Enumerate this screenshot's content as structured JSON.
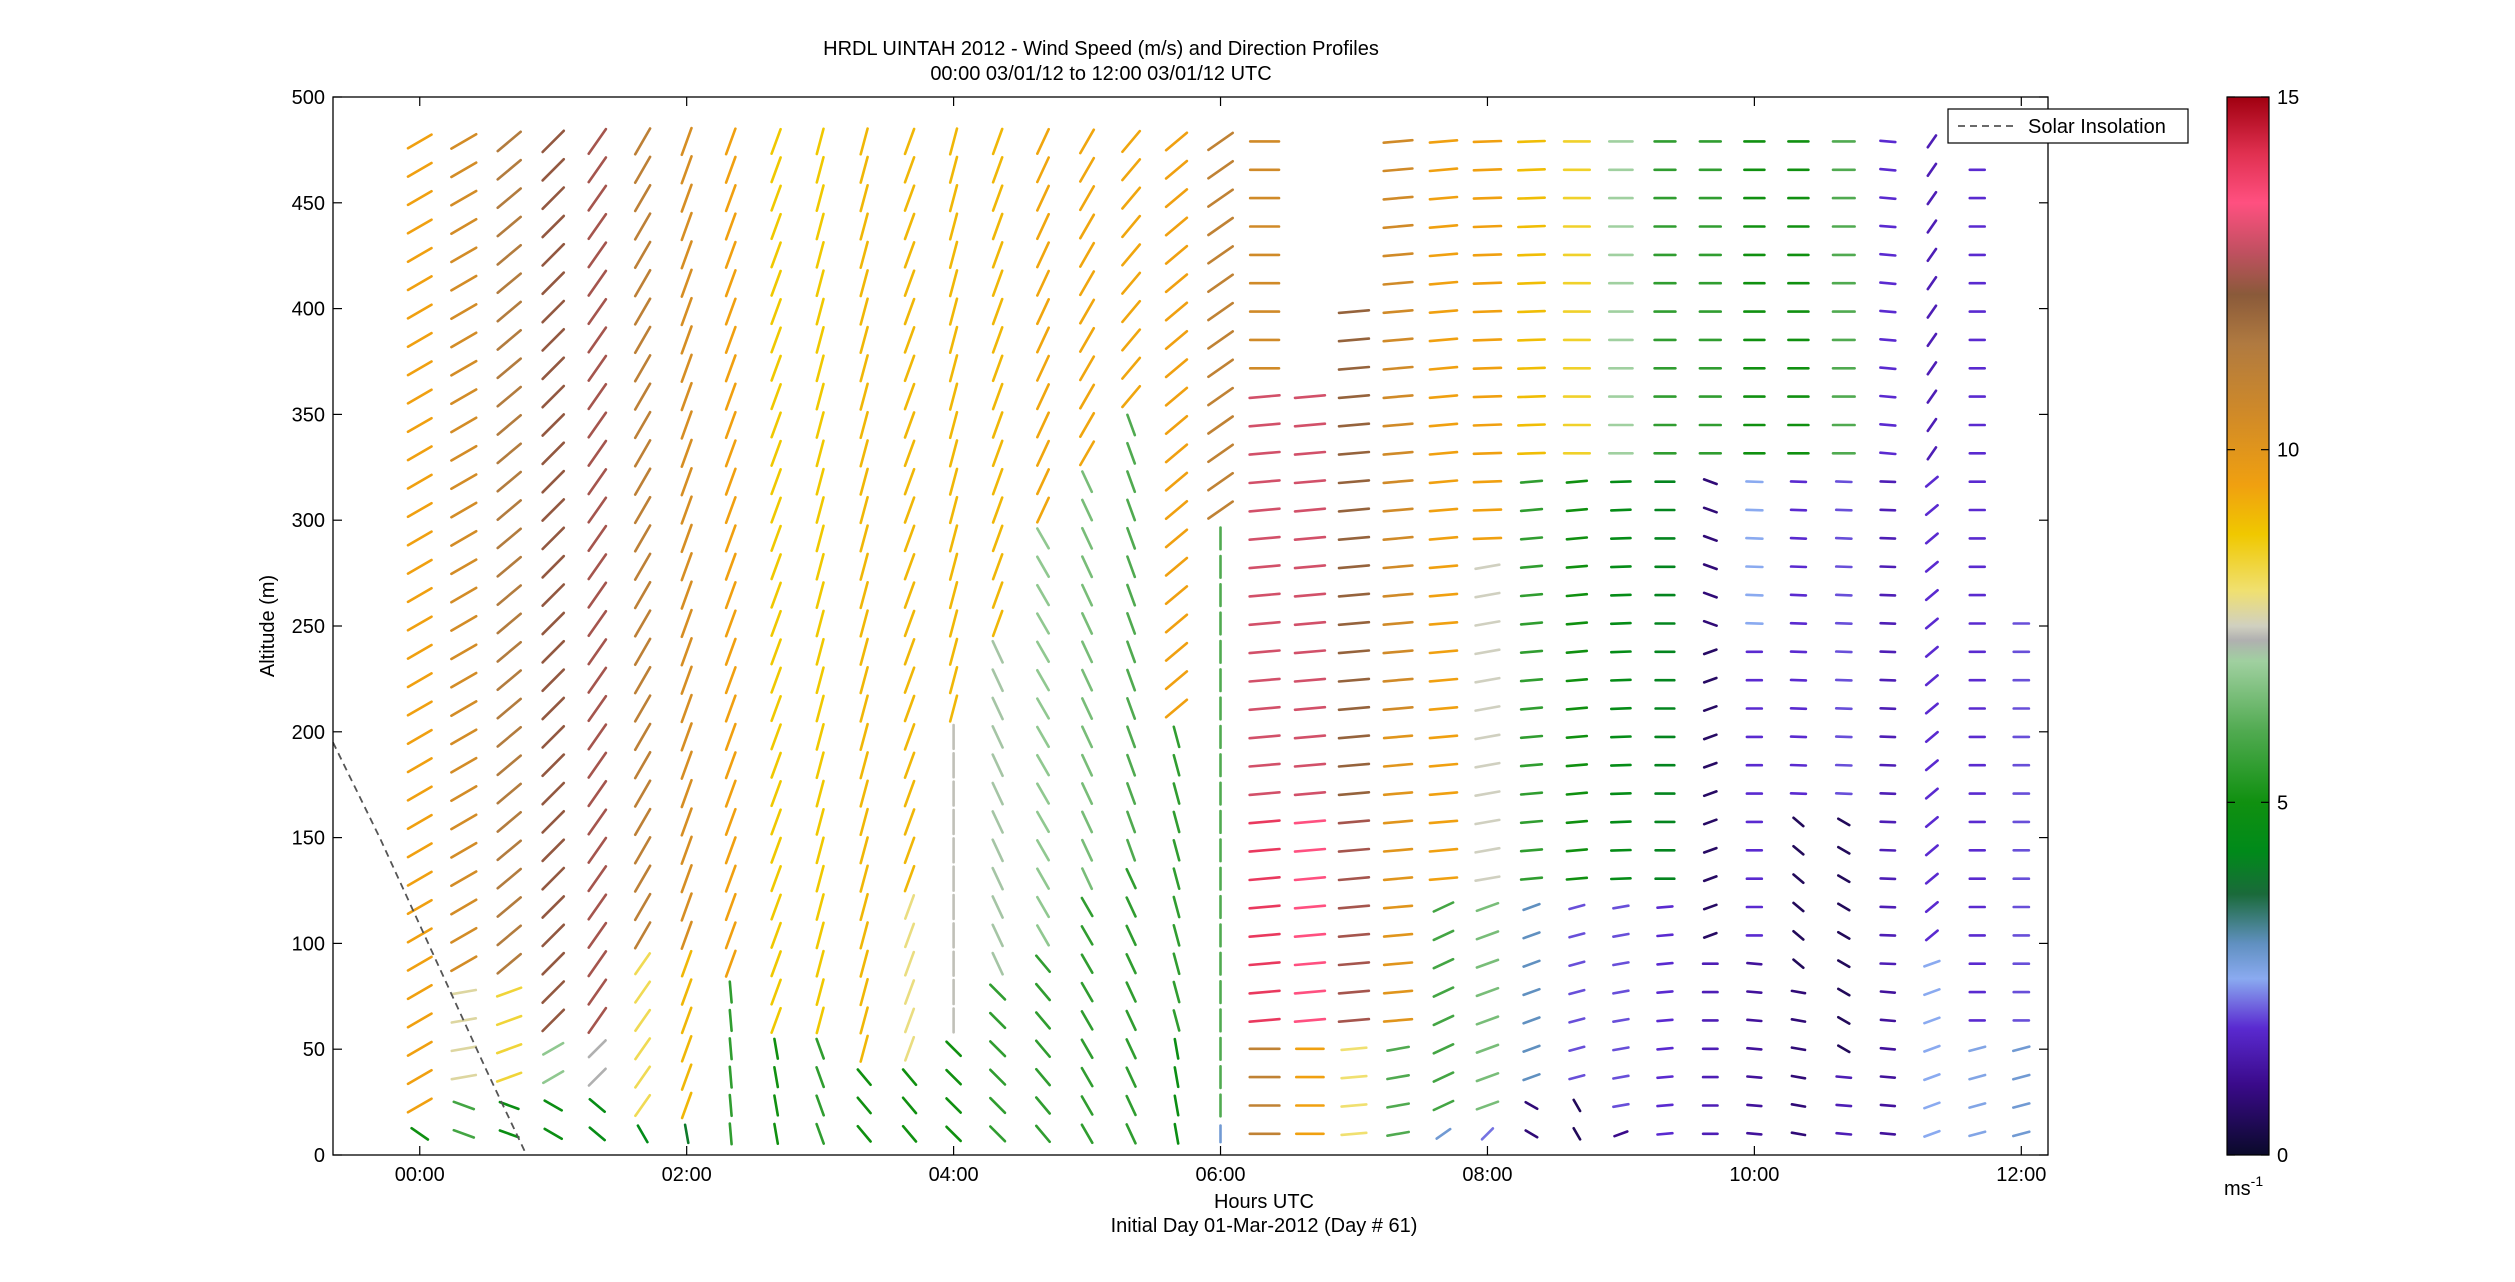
{
  "chart_data": {
    "type": "wind-barb-profile",
    "title": "HRDL UINTAH 2012 - Wind Speed (m/s) and Direction Profiles",
    "subtitle": "00:00 03/01/12 to 12:00 03/01/12  UTC",
    "xlabel": "Hours UTC",
    "xlabel2": "Initial Day 01-Mar-2012 (Day # 61)",
    "ylabel": "Altitude (m)",
    "xlim": [
      -0.65,
      12.2
    ],
    "ylim": [
      0,
      500
    ],
    "x_ticks": [
      {
        "value": 0,
        "label": "00:00"
      },
      {
        "value": 2,
        "label": "02:00"
      },
      {
        "value": 4,
        "label": "04:00"
      },
      {
        "value": 6,
        "label": "06:00"
      },
      {
        "value": 8,
        "label": "08:00"
      },
      {
        "value": 10,
        "label": "10:00"
      },
      {
        "value": 12,
        "label": "12:00"
      }
    ],
    "y_ticks": [
      "0",
      "50",
      "100",
      "150",
      "200",
      "250",
      "300",
      "350",
      "400",
      "450",
      "500"
    ],
    "legend": {
      "label": "Solar Insolation",
      "placement": "top-right",
      "line_color": "#555555"
    },
    "solar_insolation_curve": {
      "x": [
        -0.65,
        -0.3,
        0.1,
        0.5,
        0.8
      ],
      "y": [
        195,
        150,
        95,
        40,
        0
      ]
    },
    "colorbar": {
      "range": [
        0,
        15
      ],
      "ticks": [
        "0",
        "5",
        "10",
        "15"
      ],
      "unit": "ms",
      "unit_exponent": "-1",
      "colormap": [
        [
          0,
          "#0a0a2a"
        ],
        [
          1,
          "#3a0a8a"
        ],
        [
          1.8,
          "#5a2ad0"
        ],
        [
          2.5,
          "#8aaaf0"
        ],
        [
          3,
          "#6090c0"
        ],
        [
          3.7,
          "#1a6a3a"
        ],
        [
          4.3,
          "#008a1a"
        ],
        [
          5,
          "#109010"
        ],
        [
          6,
          "#50aa50"
        ],
        [
          7,
          "#a0d0a0"
        ],
        [
          7.3,
          "#b0b0b0"
        ],
        [
          7.5,
          "#d0d0c0"
        ],
        [
          8,
          "#f0e070"
        ],
        [
          8.8,
          "#f0c800"
        ],
        [
          9.5,
          "#f0a010"
        ],
        [
          10.5,
          "#d08a28"
        ],
        [
          11.5,
          "#b07a40"
        ],
        [
          12.2,
          "#8a5a3a"
        ],
        [
          12.8,
          "#c05060"
        ],
        [
          13.5,
          "#ff5080"
        ],
        [
          14.2,
          "#e03050"
        ],
        [
          15,
          "#a00010"
        ]
      ]
    },
    "series": [
      {
        "hour": 0.0,
        "altitudes": [
          [
            0,
            20,
            4.9,
            305
          ],
          [
            20,
            500,
            9.5,
            240
          ]
        ]
      },
      {
        "hour": 0.33,
        "altitudes": [
          [
            0,
            30,
            5.8,
            290
          ],
          [
            30,
            90,
            7.7,
            260
          ],
          [
            90,
            500,
            10.4,
            240
          ]
        ]
      },
      {
        "hour": 0.67,
        "altitudes": [
          [
            0,
            35,
            4.8,
            290
          ],
          [
            35,
            90,
            8.4,
            250
          ],
          [
            90,
            500,
            11.4,
            230
          ]
        ]
      },
      {
        "hour": 1.0,
        "altitudes": [
          [
            0,
            25,
            4.8,
            300
          ],
          [
            25,
            60,
            6.8,
            240
          ],
          [
            60,
            500,
            12.3,
            225
          ]
        ]
      },
      {
        "hour": 1.33,
        "altitudes": [
          [
            0,
            30,
            4.6,
            310
          ],
          [
            30,
            60,
            7.3,
            225
          ],
          [
            60,
            500,
            12.5,
            215
          ]
        ]
      },
      {
        "hour": 1.67,
        "altitudes": [
          [
            0,
            20,
            4.4,
            330
          ],
          [
            20,
            100,
            8.2,
            215
          ],
          [
            100,
            500,
            11.1,
            210
          ]
        ]
      },
      {
        "hour": 2.0,
        "altitudes": [
          [
            0,
            20,
            4.0,
            350
          ],
          [
            20,
            100,
            9.1,
            200
          ],
          [
            100,
            500,
            10.3,
            200
          ]
        ]
      },
      {
        "hour": 2.33,
        "altitudes": [
          [
            0,
            80,
            5.5,
            355
          ],
          [
            80,
            500,
            9.5,
            200
          ]
        ]
      },
      {
        "hour": 2.67,
        "altitudes": [
          [
            0,
            60,
            5.0,
            350
          ],
          [
            60,
            500,
            8.8,
            200
          ]
        ]
      },
      {
        "hour": 3.0,
        "altitudes": [
          [
            0,
            60,
            5.5,
            340
          ],
          [
            60,
            500,
            8.8,
            195
          ]
        ]
      },
      {
        "hour": 3.33,
        "altitudes": [
          [
            0,
            40,
            5.0,
            320
          ],
          [
            40,
            500,
            9.1,
            195
          ]
        ]
      },
      {
        "hour": 3.67,
        "altitudes": [
          [
            0,
            50,
            5.0,
            320
          ],
          [
            50,
            130,
            7.9,
            200
          ],
          [
            130,
            500,
            9.1,
            200
          ]
        ]
      },
      {
        "hour": 4.0,
        "altitudes": [
          [
            0,
            60,
            5.0,
            315
          ],
          [
            60,
            200,
            7.4,
            180
          ],
          [
            200,
            500,
            9.1,
            195
          ]
        ]
      },
      {
        "hour": 4.33,
        "altitudes": [
          [
            0,
            80,
            5.5,
            315
          ],
          [
            80,
            240,
            7.1,
            155
          ],
          [
            240,
            500,
            9.1,
            200
          ]
        ]
      },
      {
        "hour": 4.67,
        "altitudes": [
          [
            0,
            100,
            5.5,
            320
          ],
          [
            100,
            300,
            6.8,
            150
          ],
          [
            300,
            500,
            9.4,
            205
          ]
        ]
      },
      {
        "hour": 5.0,
        "altitudes": [
          [
            0,
            120,
            5.5,
            330
          ],
          [
            120,
            330,
            6.5,
            155
          ],
          [
            330,
            500,
            9.4,
            210
          ]
        ]
      },
      {
        "hour": 5.33,
        "altitudes": [
          [
            0,
            140,
            5.5,
            335
          ],
          [
            140,
            350,
            6.0,
            160
          ],
          [
            350,
            500,
            9.4,
            220
          ]
        ]
      },
      {
        "hour": 5.67,
        "altitudes": [
          [
            0,
            60,
            4.8,
            350
          ],
          [
            60,
            200,
            5.5,
            165
          ],
          [
            200,
            500,
            9.5,
            230
          ]
        ]
      },
      {
        "hour": 6.0,
        "altitudes": [
          [
            0,
            20,
            2.8,
            180
          ],
          [
            20,
            300,
            6.0,
            180
          ],
          [
            300,
            500,
            11.0,
            235
          ]
        ]
      },
      {
        "hour": 6.33,
        "altitudes": [
          [
            0,
            60,
            11.0,
            270
          ],
          [
            60,
            160,
            14.0,
            265
          ],
          [
            160,
            370,
            13.0,
            265
          ],
          [
            370,
            500,
            10.5,
            270
          ]
        ]
      },
      {
        "hour": 6.67,
        "altitudes": [
          [
            0,
            60,
            9.5,
            270
          ],
          [
            60,
            160,
            13.5,
            265
          ],
          [
            160,
            370,
            13.0,
            265
          ]
        ]
      },
      {
        "hour": 7.0,
        "altitudes": [
          [
            0,
            60,
            8.0,
            265
          ],
          [
            60,
            160,
            12.5,
            265
          ],
          [
            160,
            400,
            12.0,
            265
          ]
        ]
      },
      {
        "hour": 7.33,
        "altitudes": [
          [
            0,
            60,
            6.0,
            260
          ],
          [
            60,
            200,
            10.0,
            265
          ],
          [
            200,
            500,
            10.5,
            265
          ]
        ]
      },
      {
        "hour": 7.67,
        "altitudes": [
          [
            0,
            20,
            2.8,
            235
          ],
          [
            20,
            130,
            5.8,
            245
          ],
          [
            130,
            500,
            9.5,
            265
          ]
        ]
      },
      {
        "hour": 8.0,
        "altitudes": [
          [
            0,
            20,
            2.2,
            225
          ],
          [
            20,
            130,
            6.5,
            250
          ],
          [
            130,
            280,
            7.5,
            260
          ],
          [
            280,
            500,
            9.5,
            268
          ]
        ]
      },
      {
        "hour": 8.33,
        "altitudes": [
          [
            0,
            30,
            0.8,
            300
          ],
          [
            30,
            130,
            3.0,
            250
          ],
          [
            130,
            330,
            5.5,
            265
          ],
          [
            330,
            500,
            9.0,
            268
          ]
        ]
      },
      {
        "hour": 8.67,
        "altitudes": [
          [
            0,
            30,
            0.5,
            330
          ],
          [
            30,
            130,
            2.0,
            255
          ],
          [
            130,
            330,
            5.0,
            265
          ],
          [
            330,
            500,
            8.5,
            270
          ]
        ]
      },
      {
        "hour": 9.0,
        "altitudes": [
          [
            0,
            20,
            1.0,
            250
          ],
          [
            20,
            130,
            2.0,
            260
          ],
          [
            130,
            330,
            4.5,
            268
          ],
          [
            330,
            500,
            7.0,
            270
          ]
        ]
      },
      {
        "hour": 9.33,
        "altitudes": [
          [
            0,
            130,
            1.8,
            265
          ],
          [
            130,
            330,
            4.2,
            270
          ],
          [
            330,
            500,
            5.5,
            270
          ]
        ]
      },
      {
        "hour": 9.67,
        "altitudes": [
          [
            0,
            100,
            1.5,
            270
          ],
          [
            100,
            250,
            0.6,
            250
          ],
          [
            250,
            330,
            0.8,
            290
          ],
          [
            330,
            500,
            5.5,
            270
          ]
        ]
      },
      {
        "hour": 10.0,
        "altitudes": [
          [
            0,
            100,
            1.2,
            275
          ],
          [
            100,
            250,
            1.8,
            270
          ],
          [
            250,
            330,
            2.5,
            272
          ],
          [
            330,
            500,
            5.0,
            270
          ]
        ]
      },
      {
        "hour": 10.33,
        "altitudes": [
          [
            0,
            90,
            0.8,
            280
          ],
          [
            90,
            160,
            0.5,
            310
          ],
          [
            160,
            330,
            1.8,
            272
          ],
          [
            330,
            500,
            5.0,
            270
          ]
        ]
      },
      {
        "hour": 10.67,
        "altitudes": [
          [
            0,
            50,
            1.5,
            275
          ],
          [
            50,
            160,
            0.5,
            300
          ],
          [
            160,
            330,
            2.0,
            272
          ],
          [
            330,
            500,
            6.0,
            270
          ]
        ]
      },
      {
        "hour": 11.0,
        "altitudes": [
          [
            0,
            90,
            1.2,
            275
          ],
          [
            90,
            330,
            1.5,
            272
          ],
          [
            330,
            500,
            1.8,
            275
          ]
        ]
      },
      {
        "hour": 11.33,
        "altitudes": [
          [
            0,
            100,
            2.5,
            250
          ],
          [
            100,
            330,
            1.8,
            230
          ],
          [
            330,
            480,
            1.5,
            215
          ]
        ]
      },
      {
        "hour": 11.67,
        "altitudes": [
          [
            0,
            60,
            2.6,
            255
          ],
          [
            60,
            500,
            1.8,
            270
          ]
        ]
      },
      {
        "hour": 12.0,
        "altitudes": [
          [
            0,
            60,
            2.8,
            255
          ],
          [
            60,
            260,
            2.0,
            270
          ]
        ]
      }
    ]
  }
}
